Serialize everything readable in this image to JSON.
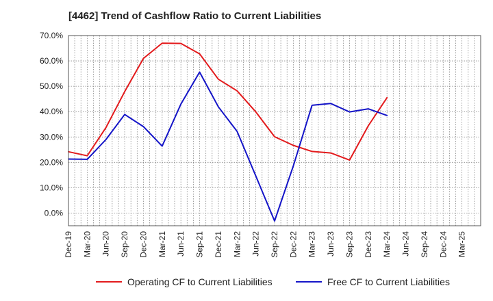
{
  "chart_data": {
    "type": "line",
    "title": "[4462]  Trend of Cashflow Ratio to Current Liabilities",
    "xlabel": "",
    "ylabel": "",
    "categories": [
      "Dec-19",
      "Mar-20",
      "Jun-20",
      "Sep-20",
      "Dec-20",
      "Mar-21",
      "Jun-21",
      "Sep-21",
      "Dec-21",
      "Mar-22",
      "Jun-22",
      "Sep-22",
      "Dec-22",
      "Mar-23",
      "Jun-23",
      "Sep-23",
      "Dec-23",
      "Mar-24",
      "Jun-24",
      "Sep-24",
      "Dec-24",
      "Mar-25"
    ],
    "y_ticks": [
      "70.0%",
      "60.0%",
      "50.0%",
      "40.0%",
      "30.0%",
      "20.0%",
      "10.0%",
      "0.0%"
    ],
    "ylim": [
      -5,
      70
    ],
    "grid": true,
    "legend_position": "bottom",
    "series": [
      {
        "name": "Operating CF to Current Liabilities",
        "color": "#e31a1c",
        "values": [
          24.2,
          22.6,
          33.7,
          47.9,
          61.0,
          67.0,
          66.9,
          62.8,
          52.8,
          48.2,
          39.9,
          30.1,
          26.7,
          24.3,
          23.7,
          20.9,
          34.4,
          45.5,
          null,
          null,
          null,
          null
        ]
      },
      {
        "name": "Free CF to Current Liabilities",
        "color": "#1414c8",
        "values": [
          21.3,
          21.2,
          29.0,
          38.9,
          34.1,
          26.4,
          43.0,
          55.6,
          41.9,
          32.2,
          14.6,
          -3.1,
          18.6,
          42.5,
          43.2,
          39.9,
          41.1,
          38.5,
          null,
          null,
          null,
          null
        ]
      }
    ]
  }
}
